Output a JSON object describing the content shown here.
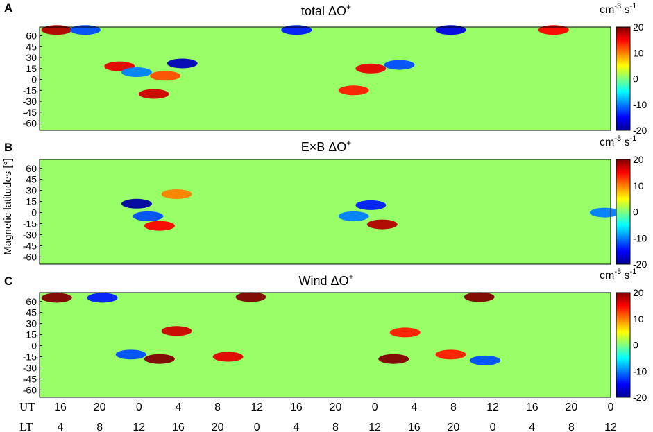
{
  "ylabel": "Magnetic latitudes [°]",
  "units": {
    "base": "cm",
    "exp1": "-3",
    "mid": " s",
    "exp2": "-1"
  },
  "colorbar": {
    "ticks": [
      "20",
      "10",
      "0",
      "-10",
      "-20"
    ],
    "colors": [
      "#00008f",
      "#0000ff",
      "#0080ff",
      "#00ffff",
      "#80ff80",
      "#ffff00",
      "#ff8000",
      "#ff0000",
      "#800000"
    ]
  },
  "x_axis": {
    "ut_label": "UT",
    "lt_label": "LT",
    "ut_ticks": [
      "16",
      "20",
      "0",
      "4",
      "8",
      "12",
      "16",
      "20",
      "0",
      "4",
      "8",
      "12",
      "16",
      "20",
      "0"
    ],
    "lt_ticks": [
      "4",
      "8",
      "12",
      "16",
      "20",
      "0",
      "4",
      "8",
      "12",
      "16",
      "20",
      "0",
      "4",
      "8",
      "12"
    ]
  },
  "chart_data": [
    {
      "type": "heatmap",
      "panel": "A",
      "title_main": "total ΔO",
      "title_sup": "+",
      "yticks": [
        "60",
        "45",
        "30",
        "15",
        "0",
        "-15",
        "-30",
        "-45",
        "-60"
      ],
      "ylim": [
        -70,
        72
      ],
      "clim": [
        -20,
        20
      ],
      "background_value": 1,
      "features": [
        {
          "x": 0.03,
          "lat": 68,
          "value": 18
        },
        {
          "x": 0.08,
          "lat": 68,
          "value": -12
        },
        {
          "x": 0.14,
          "lat": 18,
          "value": 16
        },
        {
          "x": 0.17,
          "lat": 10,
          "value": -10
        },
        {
          "x": 0.2,
          "lat": -20,
          "value": 17
        },
        {
          "x": 0.25,
          "lat": 22,
          "value": -18
        },
        {
          "x": 0.22,
          "lat": 5,
          "value": 12
        },
        {
          "x": 0.45,
          "lat": 68,
          "value": -14
        },
        {
          "x": 0.58,
          "lat": 15,
          "value": 16
        },
        {
          "x": 0.55,
          "lat": -15,
          "value": 14
        },
        {
          "x": 0.63,
          "lat": 20,
          "value": -12
        },
        {
          "x": 0.72,
          "lat": 68,
          "value": -16
        },
        {
          "x": 0.9,
          "lat": 68,
          "value": 15
        }
      ]
    },
    {
      "type": "heatmap",
      "panel": "B",
      "title_main": "E×B ΔO",
      "title_sup": "+",
      "yticks": [
        "60",
        "45",
        "30",
        "15",
        "0",
        "-15",
        "-30",
        "-45",
        "-60"
      ],
      "ylim": [
        -70,
        72
      ],
      "clim": [
        -20,
        20
      ],
      "background_value": 1,
      "features": [
        {
          "x": 0.17,
          "lat": 12,
          "value": -19
        },
        {
          "x": 0.19,
          "lat": -5,
          "value": -12
        },
        {
          "x": 0.21,
          "lat": -18,
          "value": 15
        },
        {
          "x": 0.24,
          "lat": 25,
          "value": 10
        },
        {
          "x": 0.58,
          "lat": 10,
          "value": -14
        },
        {
          "x": 0.6,
          "lat": -16,
          "value": 18
        },
        {
          "x": 0.55,
          "lat": -5,
          "value": -10
        },
        {
          "x": 0.99,
          "lat": 0,
          "value": -10
        }
      ]
    },
    {
      "type": "heatmap",
      "panel": "C",
      "title_main": "Wind ΔO",
      "title_sup": "+",
      "yticks": [
        "60",
        "45",
        "30",
        "15",
        "0",
        "-15",
        "-30",
        "-45",
        "-60"
      ],
      "ylim": [
        -70,
        72
      ],
      "clim": [
        -20,
        20
      ],
      "background_value": 1,
      "features": [
        {
          "x": 0.03,
          "lat": 65,
          "value": 20
        },
        {
          "x": 0.11,
          "lat": 65,
          "value": -14
        },
        {
          "x": 0.37,
          "lat": 66,
          "value": 20
        },
        {
          "x": 0.77,
          "lat": 66,
          "value": 20
        },
        {
          "x": 0.24,
          "lat": 20,
          "value": 17
        },
        {
          "x": 0.21,
          "lat": -18,
          "value": 20
        },
        {
          "x": 0.16,
          "lat": -12,
          "value": -12
        },
        {
          "x": 0.33,
          "lat": -15,
          "value": 16
        },
        {
          "x": 0.62,
          "lat": -18,
          "value": 20
        },
        {
          "x": 0.64,
          "lat": 18,
          "value": 14
        },
        {
          "x": 0.72,
          "lat": -12,
          "value": 14
        },
        {
          "x": 0.78,
          "lat": -20,
          "value": -12
        }
      ]
    }
  ]
}
